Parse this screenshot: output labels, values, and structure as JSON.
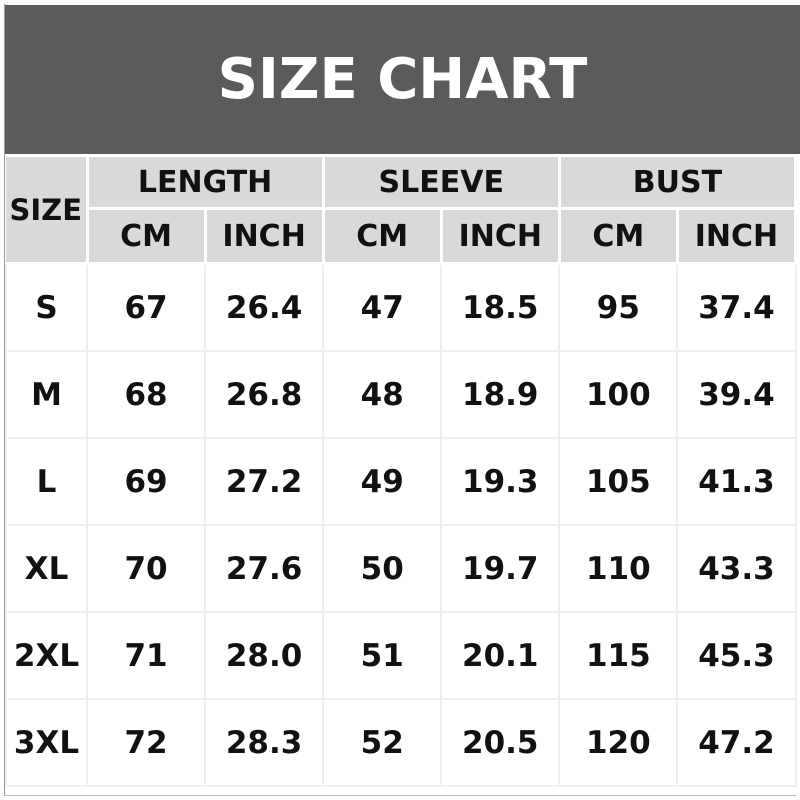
{
  "title": "SIZE CHART",
  "table": {
    "size_header": "SIZE",
    "groups": [
      "LENGTH",
      "SLEEVE",
      "BUST"
    ],
    "units": [
      "CM",
      "INCH",
      "CM",
      "INCH",
      "CM",
      "INCH"
    ],
    "rows": [
      [
        "S",
        "67",
        "26.4",
        "47",
        "18.5",
        "95",
        "37.4"
      ],
      [
        "M",
        "68",
        "26.8",
        "48",
        "18.9",
        "100",
        "39.4"
      ],
      [
        "L",
        "69",
        "27.2",
        "49",
        "19.3",
        "105",
        "41.3"
      ],
      [
        "XL",
        "70",
        "27.6",
        "50",
        "19.7",
        "110",
        "43.3"
      ],
      [
        "2XL",
        "71",
        "28.0",
        "51",
        "20.1",
        "115",
        "45.3"
      ],
      [
        "3XL",
        "72",
        "28.3",
        "52",
        "20.5",
        "120",
        "47.2"
      ]
    ]
  },
  "colors": {
    "title_bg": "#5b5b5b",
    "header_bg": "#d9d9d9"
  }
}
